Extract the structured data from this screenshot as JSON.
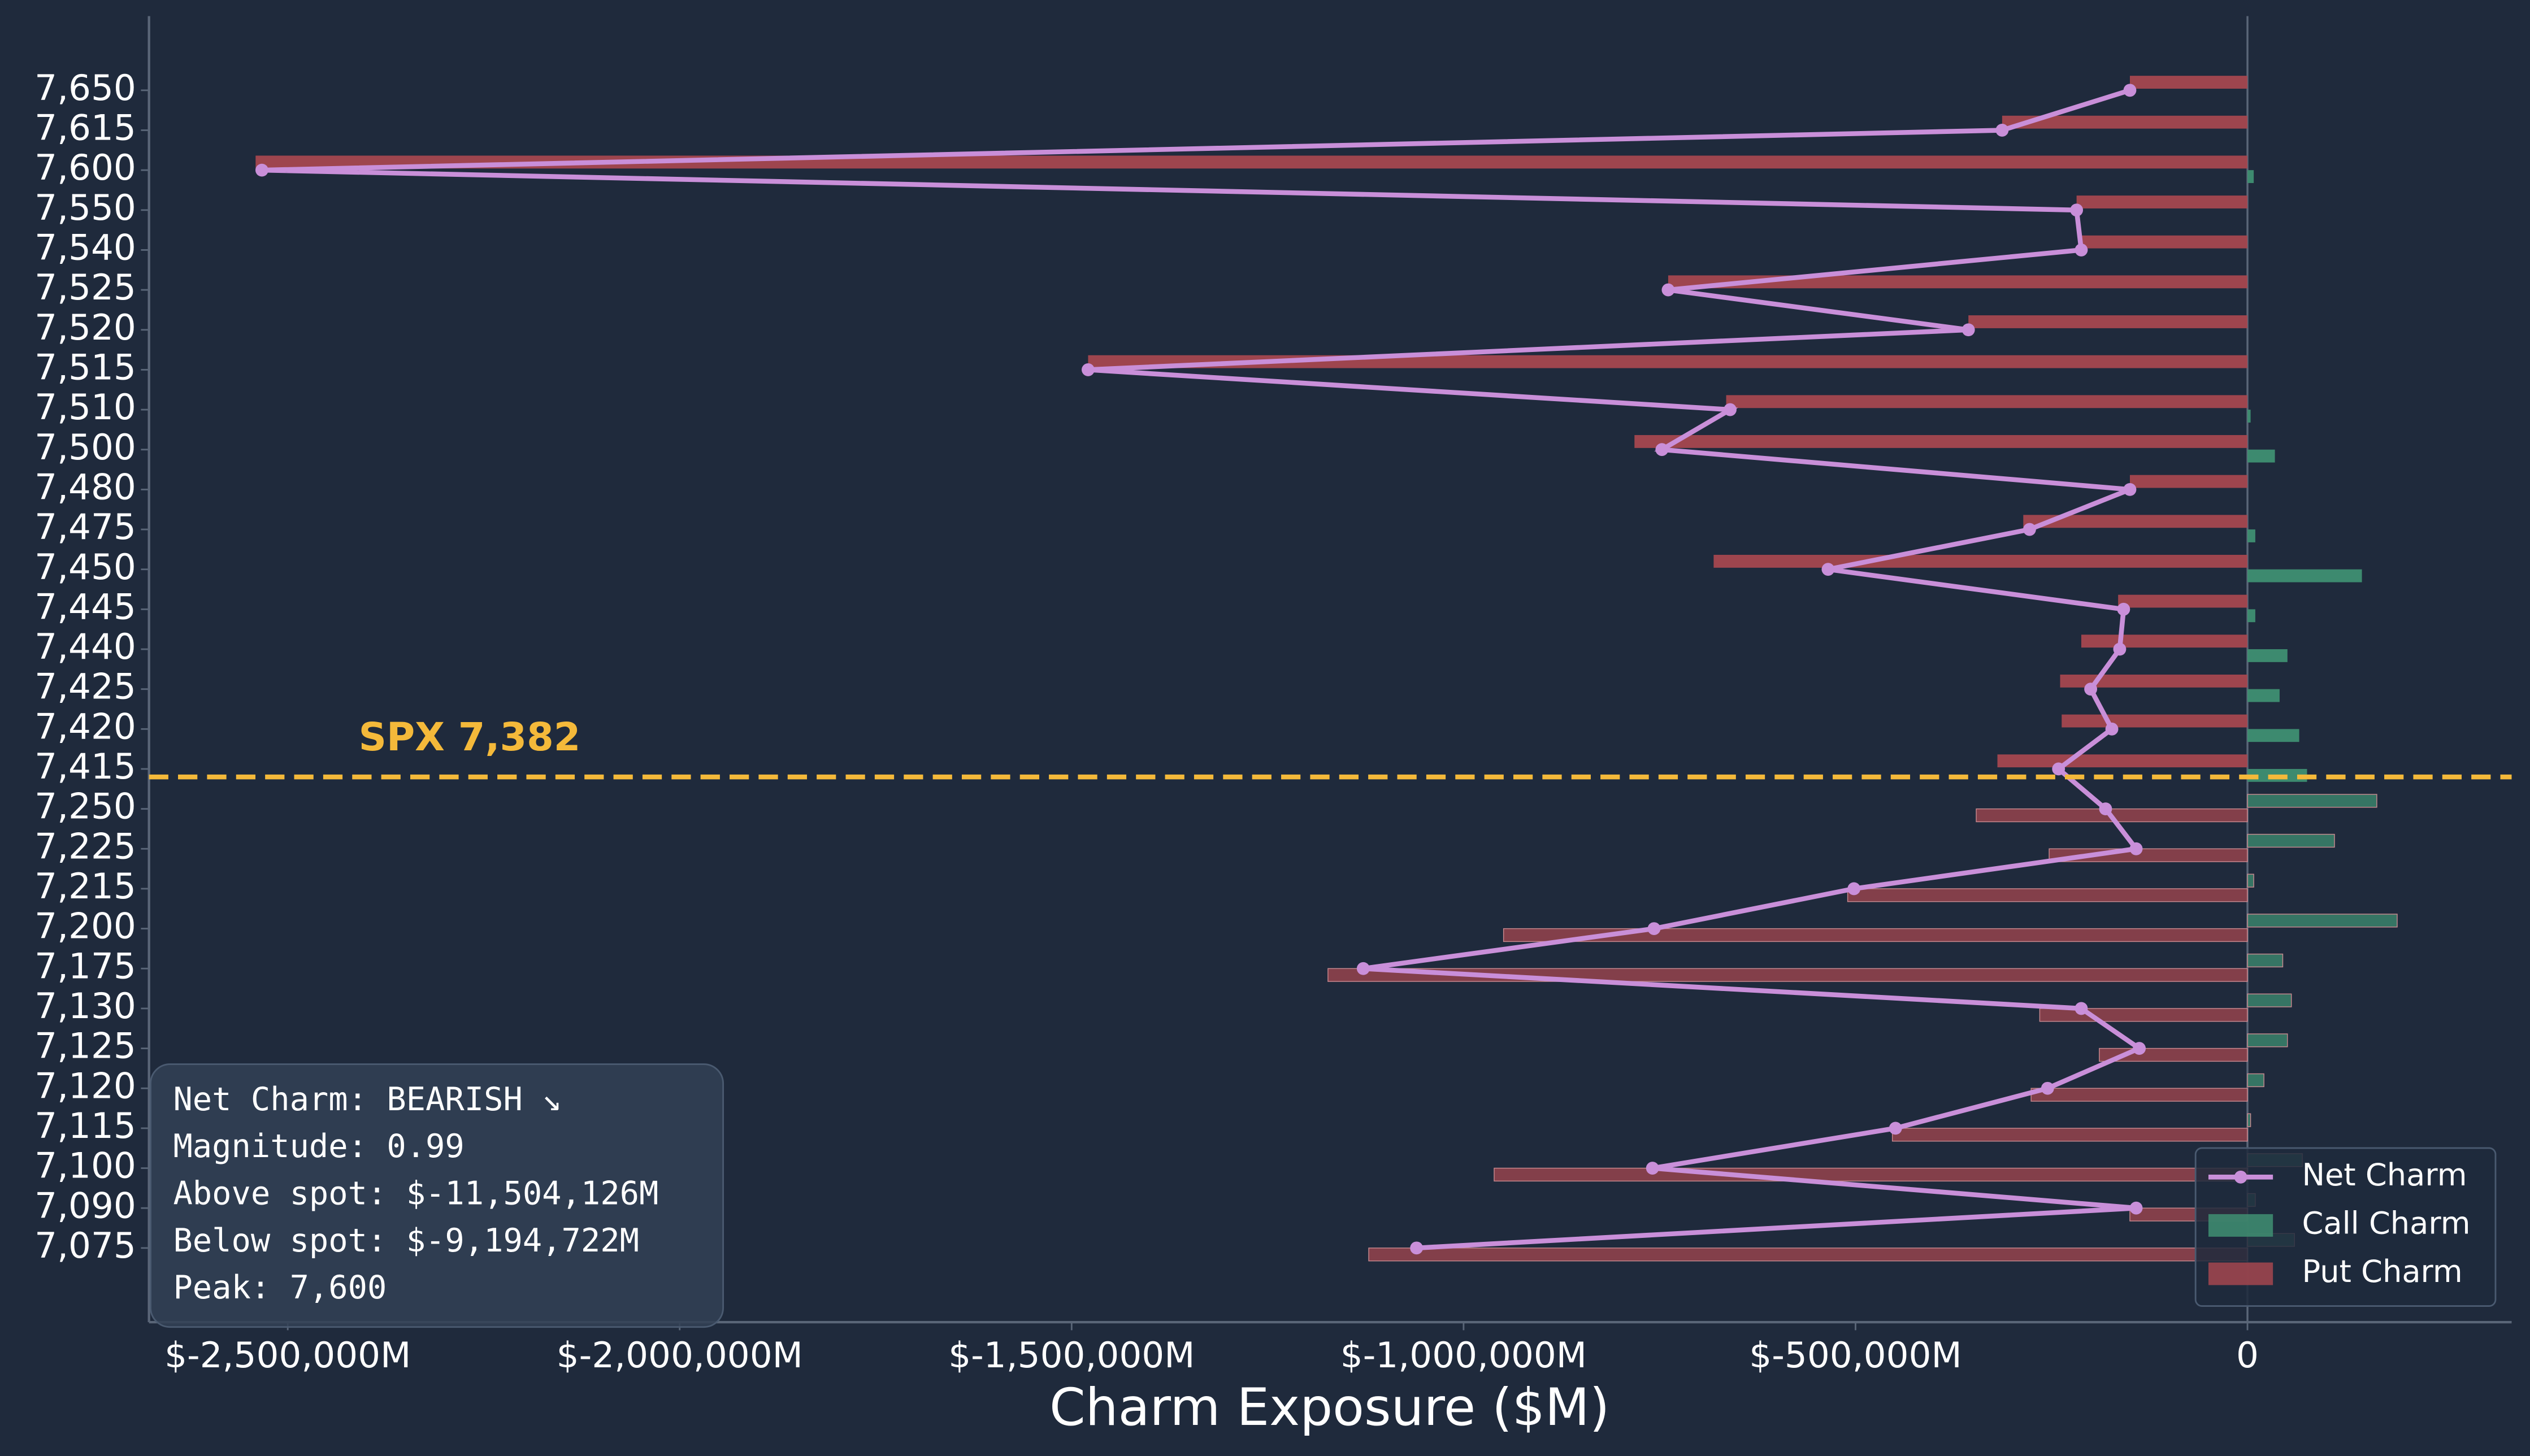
{
  "chart_data": {
    "type": "bar",
    "orientation": "horizontal",
    "categories": [
      "7,650",
      "7,615",
      "7,600",
      "7,550",
      "7,540",
      "7,525",
      "7,520",
      "7,515",
      "7,510",
      "7,500",
      "7,480",
      "7,475",
      "7,450",
      "7,445",
      "7,440",
      "7,425",
      "7,420",
      "7,415",
      "7,250",
      "7,225",
      "7,215",
      "7,200",
      "7,175",
      "7,130",
      "7,125",
      "7,120",
      "7,115",
      "7,100",
      "7,090",
      "7,075"
    ],
    "series": [
      {
        "name": "Net Charm",
        "type": "line",
        "color": "#c98fd9",
        "values": [
          -150000,
          -313000,
          -2533000,
          -218000,
          -212000,
          -739000,
          -356000,
          -1479000,
          -660000,
          -747000,
          -150000,
          -278000,
          -535000,
          -158000,
          -163000,
          -200000,
          -173000,
          -241000,
          -181000,
          -142000,
          -502000,
          -757000,
          -1128000,
          -212000,
          -138000,
          -255000,
          -449000,
          -759000,
          -142000,
          -1060000
        ]
      },
      {
        "name": "Call Charm",
        "type": "bar",
        "color": "#3f8f72",
        "values": [
          0,
          0,
          8000,
          0,
          0,
          0,
          0,
          0,
          4000,
          35000,
          0,
          10000,
          146000,
          10000,
          51000,
          41000,
          66000,
          76000,
          165000,
          111000,
          8000,
          191000,
          45000,
          56000,
          51000,
          21000,
          4000,
          70000,
          10000,
          60000
        ]
      },
      {
        "name": "Put Charm",
        "type": "bar",
        "color": "#a5474f",
        "values": [
          -150000,
          -313000,
          -2541000,
          -218000,
          -212000,
          -739000,
          -356000,
          -1479000,
          -665000,
          -782000,
          -150000,
          -286000,
          -681000,
          -165000,
          -212000,
          -239000,
          -237000,
          -319000,
          -346000,
          -253000,
          -510000,
          -949000,
          -1173000,
          -265000,
          -189000,
          -276000,
          -453000,
          -961000,
          -150000,
          -1121000
        ]
      }
    ],
    "xlabel": "Charm Exposure ($M)",
    "xlim": [
      -2677000,
      337000
    ],
    "xticks": [
      {
        "value": -2500000,
        "label": "$-2,500,000M"
      },
      {
        "value": -2000000,
        "label": "$-2,000,000M"
      },
      {
        "value": -1500000,
        "label": "$-1,500,000M"
      },
      {
        "value": -1000000,
        "label": "$-1,000,000M"
      },
      {
        "value": -500000,
        "label": "$-500,000M"
      },
      0
    ],
    "spot": {
      "value": 7382,
      "label": "SPX 7,382",
      "color": "#f4b93a"
    },
    "annotations": [
      "Net Charm: BEARISH ↘",
      "Magnitude: 0.99",
      "Above spot: $-11,504,126M",
      "Below spot: $-9,194,722M",
      "Peak: 7,600"
    ],
    "legend": "lower right"
  }
}
